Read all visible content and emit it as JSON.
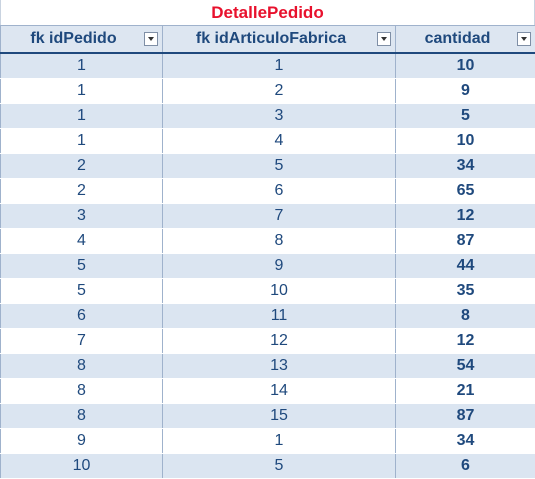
{
  "table": {
    "title": "DetallePedido",
    "columns": [
      {
        "label": "fk idPedido",
        "filter_icon": "dropdown-arrow-icon"
      },
      {
        "label": "fk idArticuloFabrica",
        "filter_icon": "dropdown-arrow-icon"
      },
      {
        "label": "cantidad",
        "filter_icon": "dropdown-arrow-icon"
      }
    ],
    "rows": [
      [
        "1",
        "1",
        "10"
      ],
      [
        "1",
        "2",
        "9"
      ],
      [
        "1",
        "3",
        "5"
      ],
      [
        "1",
        "4",
        "10"
      ],
      [
        "2",
        "5",
        "34"
      ],
      [
        "2",
        "6",
        "65"
      ],
      [
        "3",
        "7",
        "12"
      ],
      [
        "4",
        "8",
        "87"
      ],
      [
        "5",
        "9",
        "44"
      ],
      [
        "5",
        "10",
        "35"
      ],
      [
        "6",
        "11",
        "8"
      ],
      [
        "7",
        "12",
        "12"
      ],
      [
        "8",
        "13",
        "54"
      ],
      [
        "8",
        "14",
        "21"
      ],
      [
        "8",
        "15",
        "87"
      ],
      [
        "9",
        "1",
        "34"
      ],
      [
        "10",
        "5",
        "6"
      ]
    ]
  },
  "colors": {
    "title": "#e8112d",
    "header_text": "#1f497d",
    "band": "#dbe5f1"
  }
}
